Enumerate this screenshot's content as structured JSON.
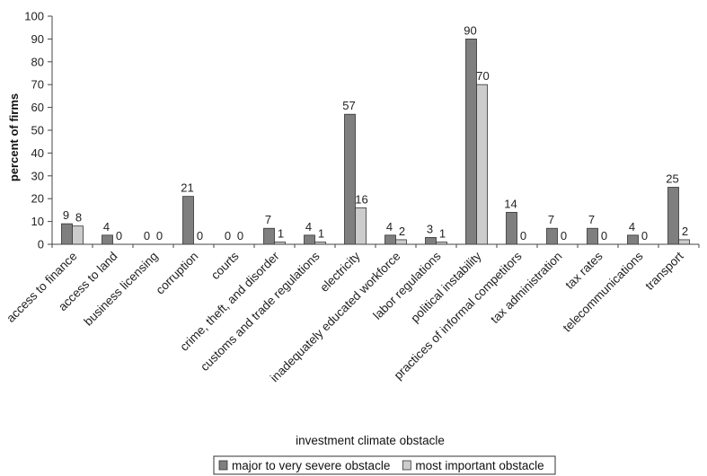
{
  "chart_data": {
    "type": "bar",
    "title": "",
    "xlabel": "investment climate obstacle",
    "ylabel": "percent of firms",
    "ylim": [
      0,
      100
    ],
    "yticks": [
      0,
      10,
      20,
      30,
      40,
      50,
      60,
      70,
      80,
      90,
      100
    ],
    "grid": false,
    "legend_position": "bottom",
    "categories": [
      "access to finance",
      "access to land",
      "business licensing",
      "corruption",
      "courts",
      "crime, theft, and disorder",
      "customs and trade regulations",
      "electricity",
      "inadequately educated workforce",
      "labor regulations",
      "political instability",
      "practices of informal competitors",
      "tax administration",
      "tax rates",
      "telecommunications",
      "transport"
    ],
    "series": [
      {
        "name": "major to very severe obstacle",
        "color": "#7f7f7f",
        "values": [
          9,
          4,
          0,
          21,
          0,
          7,
          4,
          57,
          4,
          3,
          90,
          14,
          7,
          7,
          4,
          25
        ]
      },
      {
        "name": "most important obstacle",
        "color": "#cccccc",
        "values": [
          8,
          0,
          0,
          0,
          0,
          1,
          1,
          16,
          2,
          1,
          70,
          0,
          0,
          0,
          0,
          2
        ]
      }
    ]
  }
}
